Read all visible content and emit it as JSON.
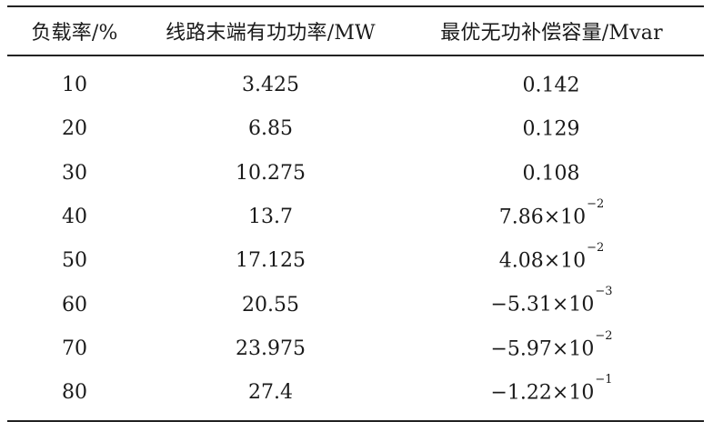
{
  "table": {
    "headers": [
      "负载率/%",
      "线路末端有功功率/MW",
      "最优无功补偿容量/Mvar"
    ],
    "rows": [
      {
        "load_rate": "10",
        "active_power": "3.425",
        "comp_coef": "0.142",
        "comp_exp": ""
      },
      {
        "load_rate": "20",
        "active_power": "6.85",
        "comp_coef": "0.129",
        "comp_exp": ""
      },
      {
        "load_rate": "30",
        "active_power": "10.275",
        "comp_coef": "0.108",
        "comp_exp": ""
      },
      {
        "load_rate": "40",
        "active_power": "13.7",
        "comp_coef": "7.86×10",
        "comp_exp": "−2"
      },
      {
        "load_rate": "50",
        "active_power": "17.125",
        "comp_coef": "4.08×10",
        "comp_exp": "−2"
      },
      {
        "load_rate": "60",
        "active_power": "20.55",
        "comp_coef": "−5.31×10",
        "comp_exp": "−3"
      },
      {
        "load_rate": "70",
        "active_power": "23.975",
        "comp_coef": "−5.97×10",
        "comp_exp": "−2"
      },
      {
        "load_rate": "80",
        "active_power": "27.4",
        "comp_coef": "−1.22×10",
        "comp_exp": "−1"
      }
    ]
  }
}
